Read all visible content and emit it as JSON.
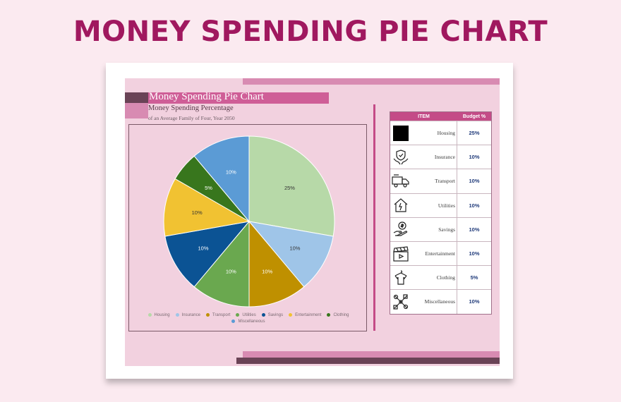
{
  "headline": "MONEY SPENDING PIE CHART",
  "sheet": {
    "title": "Money Spending Pie Chart",
    "subtitle": "Money Spending Percentage",
    "subtitle2": "of an Average Family of Four, Year 2050"
  },
  "table": {
    "col_item": "ITEM",
    "col_budget": "Budget %",
    "rows": [
      {
        "item": "Housing",
        "budget": "25%",
        "icon": "black-square-icon"
      },
      {
        "item": "Insurance",
        "budget": "10%",
        "icon": "shield-hands-icon"
      },
      {
        "item": "Transport",
        "budget": "10%",
        "icon": "truck-icon"
      },
      {
        "item": "Utilities",
        "budget": "10%",
        "icon": "house-plug-icon"
      },
      {
        "item": "Savings",
        "budget": "10%",
        "icon": "money-hand-icon"
      },
      {
        "item": "Entertainment",
        "budget": "10%",
        "icon": "clapperboard-icon"
      },
      {
        "item": "Clothing",
        "budget": "5%",
        "icon": "shirt-hanger-icon"
      },
      {
        "item": "Miscellaneous",
        "budget": "10%",
        "icon": "tools-icon"
      }
    ]
  },
  "chart_data": {
    "type": "pie",
    "categories": [
      "Housing",
      "Insurance",
      "Transport",
      "Utilities",
      "Savings",
      "Entertainment",
      "Clothing",
      "Miscellaneous"
    ],
    "values": [
      25,
      10,
      10,
      10,
      10,
      10,
      5,
      10
    ],
    "labels": [
      "25%",
      "10%",
      "10%",
      "10%",
      "10%",
      "10%",
      "5%",
      "10%"
    ],
    "colors": [
      "#b7d9a8",
      "#9fc5e8",
      "#bf9000",
      "#6aa84f",
      "#0b5394",
      "#f1c232",
      "#38761d",
      "#5b9bd5"
    ],
    "title": "Money Spending Pie Chart",
    "legend_position": "bottom"
  }
}
